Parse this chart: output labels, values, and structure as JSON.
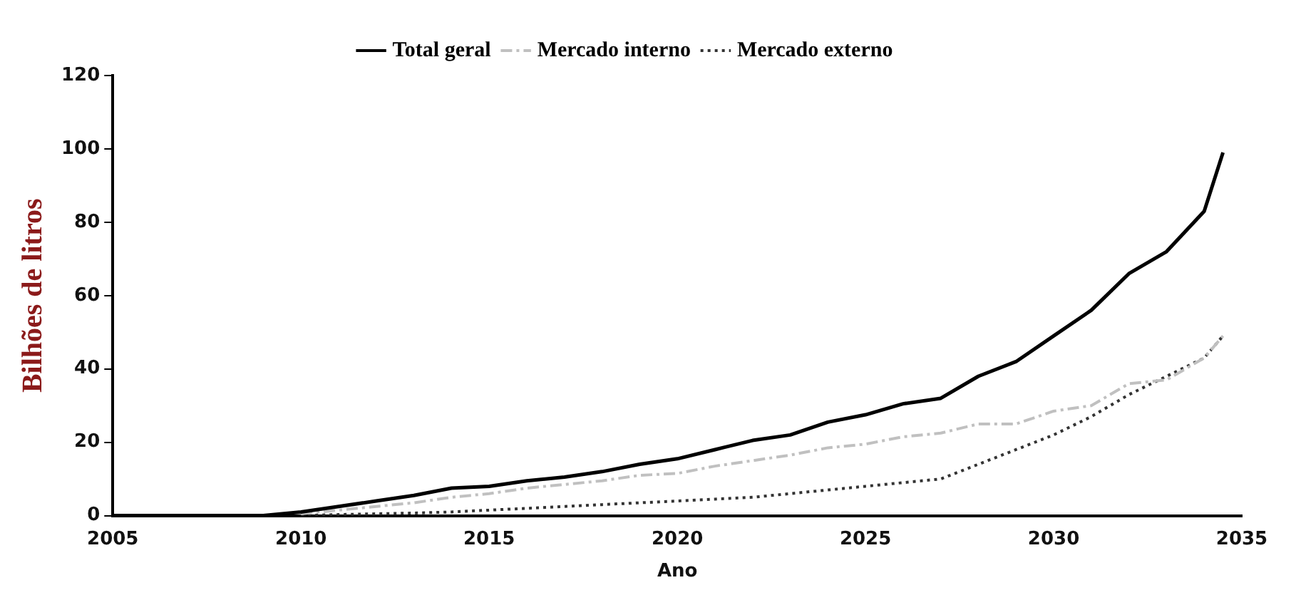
{
  "chart_data": {
    "type": "line",
    "xlabel": "Ano",
    "ylabel": "Bilhões de litros",
    "x": [
      2005,
      2006,
      2007,
      2008,
      2009,
      2010,
      2011,
      2012,
      2013,
      2014,
      2015,
      2016,
      2017,
      2018,
      2019,
      2020,
      2021,
      2022,
      2023,
      2024,
      2025,
      2026,
      2027,
      2028,
      2029,
      2030,
      2031,
      2032,
      2033,
      2034,
      2034.5
    ],
    "series": [
      {
        "name": "Total geral",
        "color": "#000000",
        "line_style": "solid",
        "values": [
          0,
          0,
          0,
          0,
          0,
          1,
          2.5,
          4,
          5.5,
          7.5,
          8,
          9.5,
          10.5,
          12,
          14,
          15.5,
          18,
          20.5,
          22,
          25.5,
          27.5,
          30.5,
          32,
          38,
          42,
          49,
          56,
          66,
          72,
          83,
          99
        ]
      },
      {
        "name": "Mercado interno",
        "color": "#c0c0c0",
        "line_style": "dashed",
        "values": [
          null,
          null,
          null,
          null,
          null,
          0.5,
          1.5,
          2.5,
          3.5,
          5,
          6,
          7.5,
          8.5,
          9.5,
          11,
          11.5,
          13.5,
          15,
          16.5,
          18.5,
          19.5,
          21.5,
          22.5,
          25,
          25,
          28.5,
          30,
          36,
          37,
          43,
          49
        ]
      },
      {
        "name": "Mercado externo",
        "color": "#333333",
        "line_style": "dotted",
        "values": [
          null,
          null,
          null,
          null,
          null,
          0,
          0.3,
          0.5,
          0.7,
          1,
          1.5,
          2,
          2.5,
          3,
          3.5,
          4,
          4.5,
          5,
          6,
          7,
          8,
          9,
          10,
          14,
          18,
          22,
          27,
          33,
          38,
          43,
          49
        ]
      }
    ],
    "xlim": [
      2005,
      2035
    ],
    "xticks": [
      2005,
      2010,
      2015,
      2020,
      2025,
      2030,
      2035
    ],
    "ylim": [
      0,
      120
    ],
    "yticks": [
      0,
      20,
      40,
      60,
      80,
      100,
      120
    ],
    "grid": false,
    "legend": "top",
    "marker": "none"
  }
}
